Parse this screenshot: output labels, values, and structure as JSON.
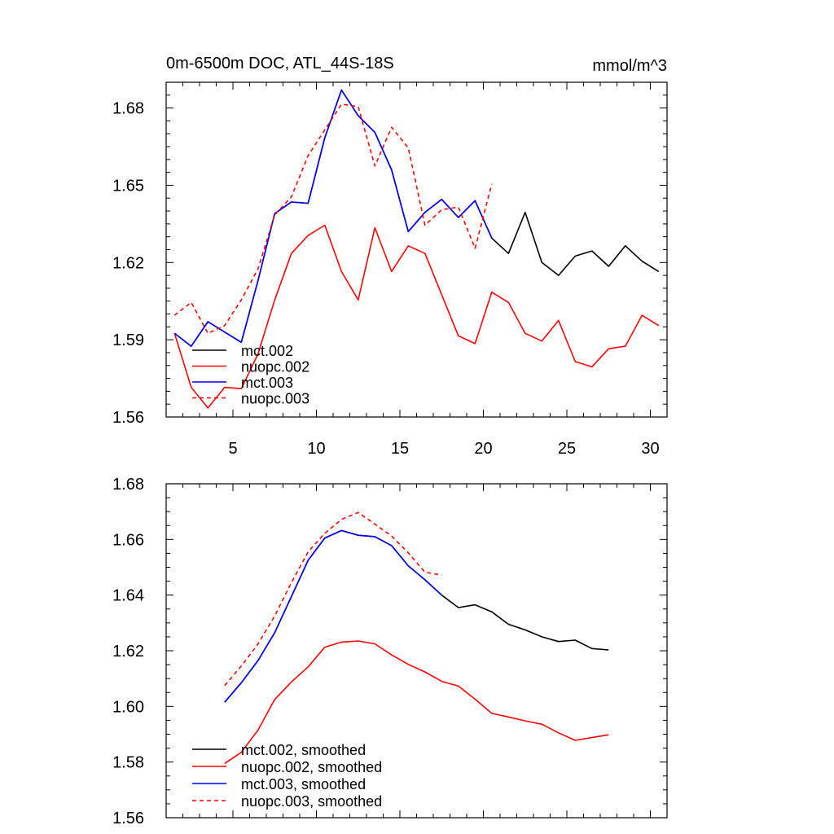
{
  "chart_data": [
    {
      "type": "line",
      "title_left": "0m-6500m DOC, ATL_44S-18S",
      "title_right": "mmol/m^3",
      "xlabel": "",
      "ylabel": "",
      "xlim": [
        1,
        31
      ],
      "ylim": [
        1.56,
        1.69
      ],
      "xticks": [
        5,
        10,
        15,
        20,
        25,
        30
      ],
      "yticks": [
        1.56,
        1.59,
        1.62,
        1.65,
        1.68
      ],
      "ytick_labels": [
        "1.56",
        "1.59",
        "1.62",
        "1.65",
        "1.68"
      ],
      "legend_position": "bottom-left",
      "series": [
        {
          "name": "mct.002",
          "color": "#000000",
          "dash": "solid",
          "x": [
            1.5,
            2.5,
            3.5,
            4.5,
            5.5,
            6.5,
            7.5,
            8.5,
            9.5,
            10.5,
            11.5,
            12.5,
            13.5,
            14.5,
            15.5,
            16.5,
            17.5,
            18.5,
            19.5,
            20.5,
            21.5,
            22.5,
            23.5,
            24.5,
            25.5,
            26.5,
            27.5,
            28.5,
            29.5,
            30.5
          ],
          "values": [
            1.5925,
            1.5875,
            1.597,
            1.593,
            1.589,
            1.613,
            1.639,
            1.6435,
            1.643,
            1.6685,
            1.687,
            1.677,
            1.6705,
            1.656,
            1.632,
            1.6395,
            1.6445,
            1.6375,
            1.644,
            1.6295,
            1.6235,
            1.6395,
            1.62,
            1.615,
            1.6225,
            1.6245,
            1.6185,
            1.6265,
            1.6205,
            1.6165
          ]
        },
        {
          "name": "nuopc.002",
          "color": "#ff0000",
          "dash": "solid",
          "x": [
            1.5,
            2.5,
            3.5,
            4.5,
            5.5,
            6.5,
            7.5,
            8.5,
            9.5,
            10.5,
            11.5,
            12.5,
            13.5,
            14.5,
            15.5,
            16.5,
            17.5,
            18.5,
            19.5,
            20.5,
            21.5,
            22.5,
            23.5,
            24.5,
            25.5,
            26.5,
            27.5,
            28.5,
            29.5,
            30.5
          ],
          "values": [
            1.5925,
            1.5715,
            1.5635,
            1.5715,
            1.571,
            1.5845,
            1.6055,
            1.6235,
            1.6305,
            1.6345,
            1.6165,
            1.6055,
            1.6335,
            1.6165,
            1.6265,
            1.6235,
            1.6075,
            1.5915,
            1.5885,
            1.6085,
            1.6045,
            1.5925,
            1.5895,
            1.5975,
            1.5815,
            1.5795,
            1.5865,
            1.5875,
            1.5995,
            1.5955
          ]
        },
        {
          "name": "mct.003",
          "color": "#0000ff",
          "dash": "solid",
          "x": [
            1.5,
            2.5,
            3.5,
            4.5,
            5.5,
            6.5,
            7.5,
            8.5,
            9.5,
            10.5,
            11.5,
            12.5,
            13.5,
            14.5,
            15.5,
            16.5,
            17.5,
            18.5,
            19.5,
            20.5
          ],
          "values": [
            1.5925,
            1.5875,
            1.597,
            1.593,
            1.589,
            1.613,
            1.639,
            1.6435,
            1.643,
            1.6685,
            1.687,
            1.677,
            1.6705,
            1.656,
            1.632,
            1.6395,
            1.6445,
            1.6375,
            1.644,
            1.6295
          ]
        },
        {
          "name": "nuopc.003",
          "color": "#ff0000",
          "dash": "dashed",
          "x": [
            1.5,
            2.5,
            3.5,
            4.5,
            5.5,
            6.5,
            7.5,
            8.5,
            9.5,
            10.5,
            11.5,
            12.5,
            13.5,
            14.5,
            15.5,
            16.5,
            17.5,
            18.5,
            19.5,
            20.5
          ],
          "values": [
            1.5995,
            1.6045,
            1.5925,
            1.5955,
            1.6055,
            1.6175,
            1.6385,
            1.6455,
            1.6615,
            1.6715,
            1.6815,
            1.6805,
            1.6575,
            1.6725,
            1.6645,
            1.6345,
            1.6405,
            1.6415,
            1.6255,
            1.6505
          ]
        }
      ]
    },
    {
      "type": "line",
      "xlabel": "",
      "ylabel": "",
      "xlim": [
        1,
        31
      ],
      "ylim": [
        1.56,
        1.68
      ],
      "xticks": [
        5,
        10,
        15,
        20,
        25,
        30
      ],
      "yticks": [
        1.56,
        1.58,
        1.6,
        1.62,
        1.64,
        1.66,
        1.68
      ],
      "ytick_labels": [
        "1.56",
        "1.58",
        "1.60",
        "1.62",
        "1.64",
        "1.66",
        "1.68"
      ],
      "legend_position": "bottom-left",
      "series": [
        {
          "name": "mct.002, smoothed",
          "color": "#000000",
          "dash": "solid",
          "x": [
            4.5,
            5.5,
            6.5,
            7.5,
            8.5,
            9.5,
            10.5,
            11.5,
            12.5,
            13.5,
            14.5,
            15.5,
            16.5,
            17.5,
            18.5,
            19.5,
            20.5,
            21.5,
            22.5,
            23.5,
            24.5,
            25.5,
            26.5,
            27.5
          ],
          "values": [
            1.6015,
            1.6085,
            1.6165,
            1.6265,
            1.6395,
            1.6525,
            1.6605,
            1.6632,
            1.6615,
            1.661,
            1.6578,
            1.6505,
            1.6455,
            1.64,
            1.6355,
            1.6365,
            1.634,
            1.6295,
            1.6275,
            1.625,
            1.6233,
            1.6238,
            1.6208,
            1.6203
          ]
        },
        {
          "name": "nuopc.002, smoothed",
          "color": "#ff0000",
          "dash": "solid",
          "x": [
            4.5,
            5.5,
            6.5,
            7.5,
            8.5,
            9.5,
            10.5,
            11.5,
            12.5,
            13.5,
            14.5,
            15.5,
            16.5,
            17.5,
            18.5,
            19.5,
            20.5,
            21.5,
            22.5,
            23.5,
            24.5,
            25.5,
            26.5,
            27.5
          ],
          "values": [
            1.5795,
            1.5835,
            1.5915,
            1.6025,
            1.6088,
            1.6142,
            1.6213,
            1.6231,
            1.6235,
            1.6225,
            1.6185,
            1.6151,
            1.6124,
            1.609,
            1.6073,
            1.6026,
            1.5975,
            1.5962,
            1.5948,
            1.5936,
            1.5905,
            1.5878,
            1.5888,
            1.5898
          ]
        },
        {
          "name": "mct.003, smoothed",
          "color": "#0000ff",
          "dash": "solid",
          "x": [
            4.5,
            5.5,
            6.5,
            7.5,
            8.5,
            9.5,
            10.5,
            11.5,
            12.5,
            13.5,
            14.5,
            15.5,
            16.5,
            17.5
          ],
          "values": [
            1.6015,
            1.6085,
            1.6165,
            1.6265,
            1.6395,
            1.6525,
            1.6605,
            1.6632,
            1.6615,
            1.661,
            1.6578,
            1.6505,
            1.6455,
            1.64
          ]
        },
        {
          "name": "nuopc.003, smoothed",
          "color": "#ff0000",
          "dash": "dashed",
          "x": [
            4.5,
            5.5,
            6.5,
            7.5,
            8.5,
            9.5,
            10.5,
            11.5,
            12.5,
            13.5,
            14.5,
            15.5,
            16.5,
            17.5
          ],
          "values": [
            1.6075,
            1.6145,
            1.6225,
            1.6325,
            1.6445,
            1.6555,
            1.6622,
            1.6672,
            1.6697,
            1.6655,
            1.6612,
            1.6552,
            1.6482,
            1.6472
          ]
        }
      ]
    }
  ]
}
